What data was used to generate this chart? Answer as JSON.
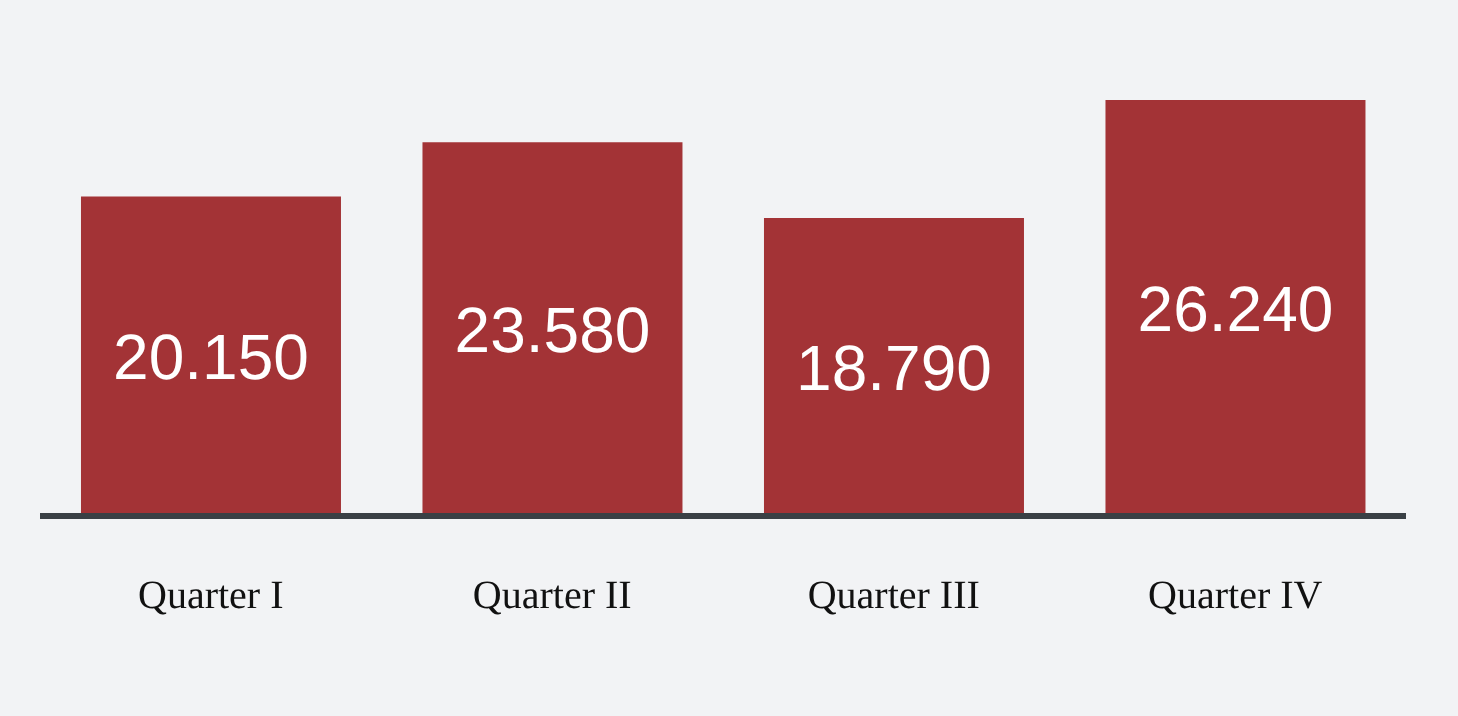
{
  "chart_data": {
    "type": "bar",
    "categories": [
      "Quarter I",
      "Quarter II",
      "Quarter III",
      "Quarter IV"
    ],
    "values": [
      20150,
      23580,
      18790,
      26240
    ],
    "value_labels": [
      "20.150",
      "23.580",
      "18.790",
      "26.240"
    ],
    "color": "#a33336",
    "tick_labels": "x"
  }
}
